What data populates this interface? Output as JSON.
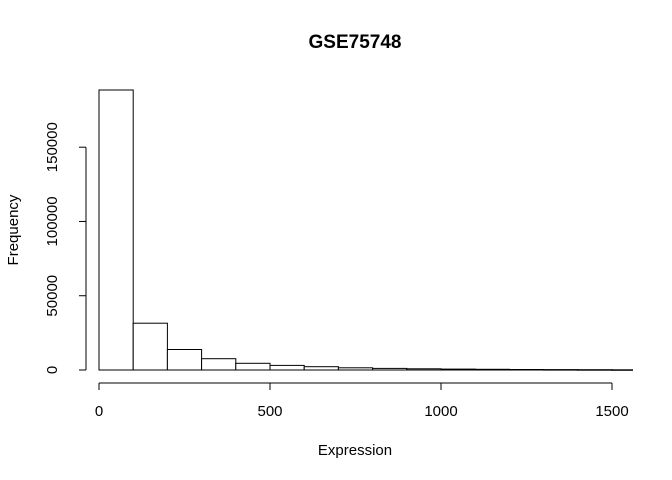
{
  "chart_data": {
    "type": "bar",
    "title": "GSE75748",
    "xlabel": "Expression",
    "ylabel": "Frequency",
    "bin_width": 100,
    "bins": [
      {
        "start": 0,
        "end": 100,
        "count": 188500
      },
      {
        "start": 100,
        "end": 200,
        "count": 31500
      },
      {
        "start": 200,
        "end": 300,
        "count": 13800
      },
      {
        "start": 300,
        "end": 400,
        "count": 7600
      },
      {
        "start": 400,
        "end": 500,
        "count": 4500
      },
      {
        "start": 500,
        "end": 600,
        "count": 3100
      },
      {
        "start": 600,
        "end": 700,
        "count": 2200
      },
      {
        "start": 700,
        "end": 800,
        "count": 1500
      },
      {
        "start": 800,
        "end": 900,
        "count": 1100
      },
      {
        "start": 900,
        "end": 1000,
        "count": 800
      },
      {
        "start": 1000,
        "end": 1100,
        "count": 600
      },
      {
        "start": 1100,
        "end": 1200,
        "count": 450
      },
      {
        "start": 1200,
        "end": 1300,
        "count": 350
      },
      {
        "start": 1300,
        "end": 1400,
        "count": 250
      },
      {
        "start": 1400,
        "end": 1500,
        "count": 180
      },
      {
        "start": 1500,
        "end": 1560,
        "count": 120
      }
    ],
    "xlim": [
      0,
      1560
    ],
    "ylim": [
      0,
      188500
    ],
    "x_ticks": [
      0,
      500,
      1000,
      1500
    ],
    "y_ticks": [
      0,
      50000,
      100000,
      150000
    ],
    "x_tick_labels": [
      "0",
      "500",
      "1000",
      "1500"
    ],
    "y_tick_labels": [
      "0",
      "50000",
      "100000",
      "150000"
    ],
    "grid": false
  }
}
